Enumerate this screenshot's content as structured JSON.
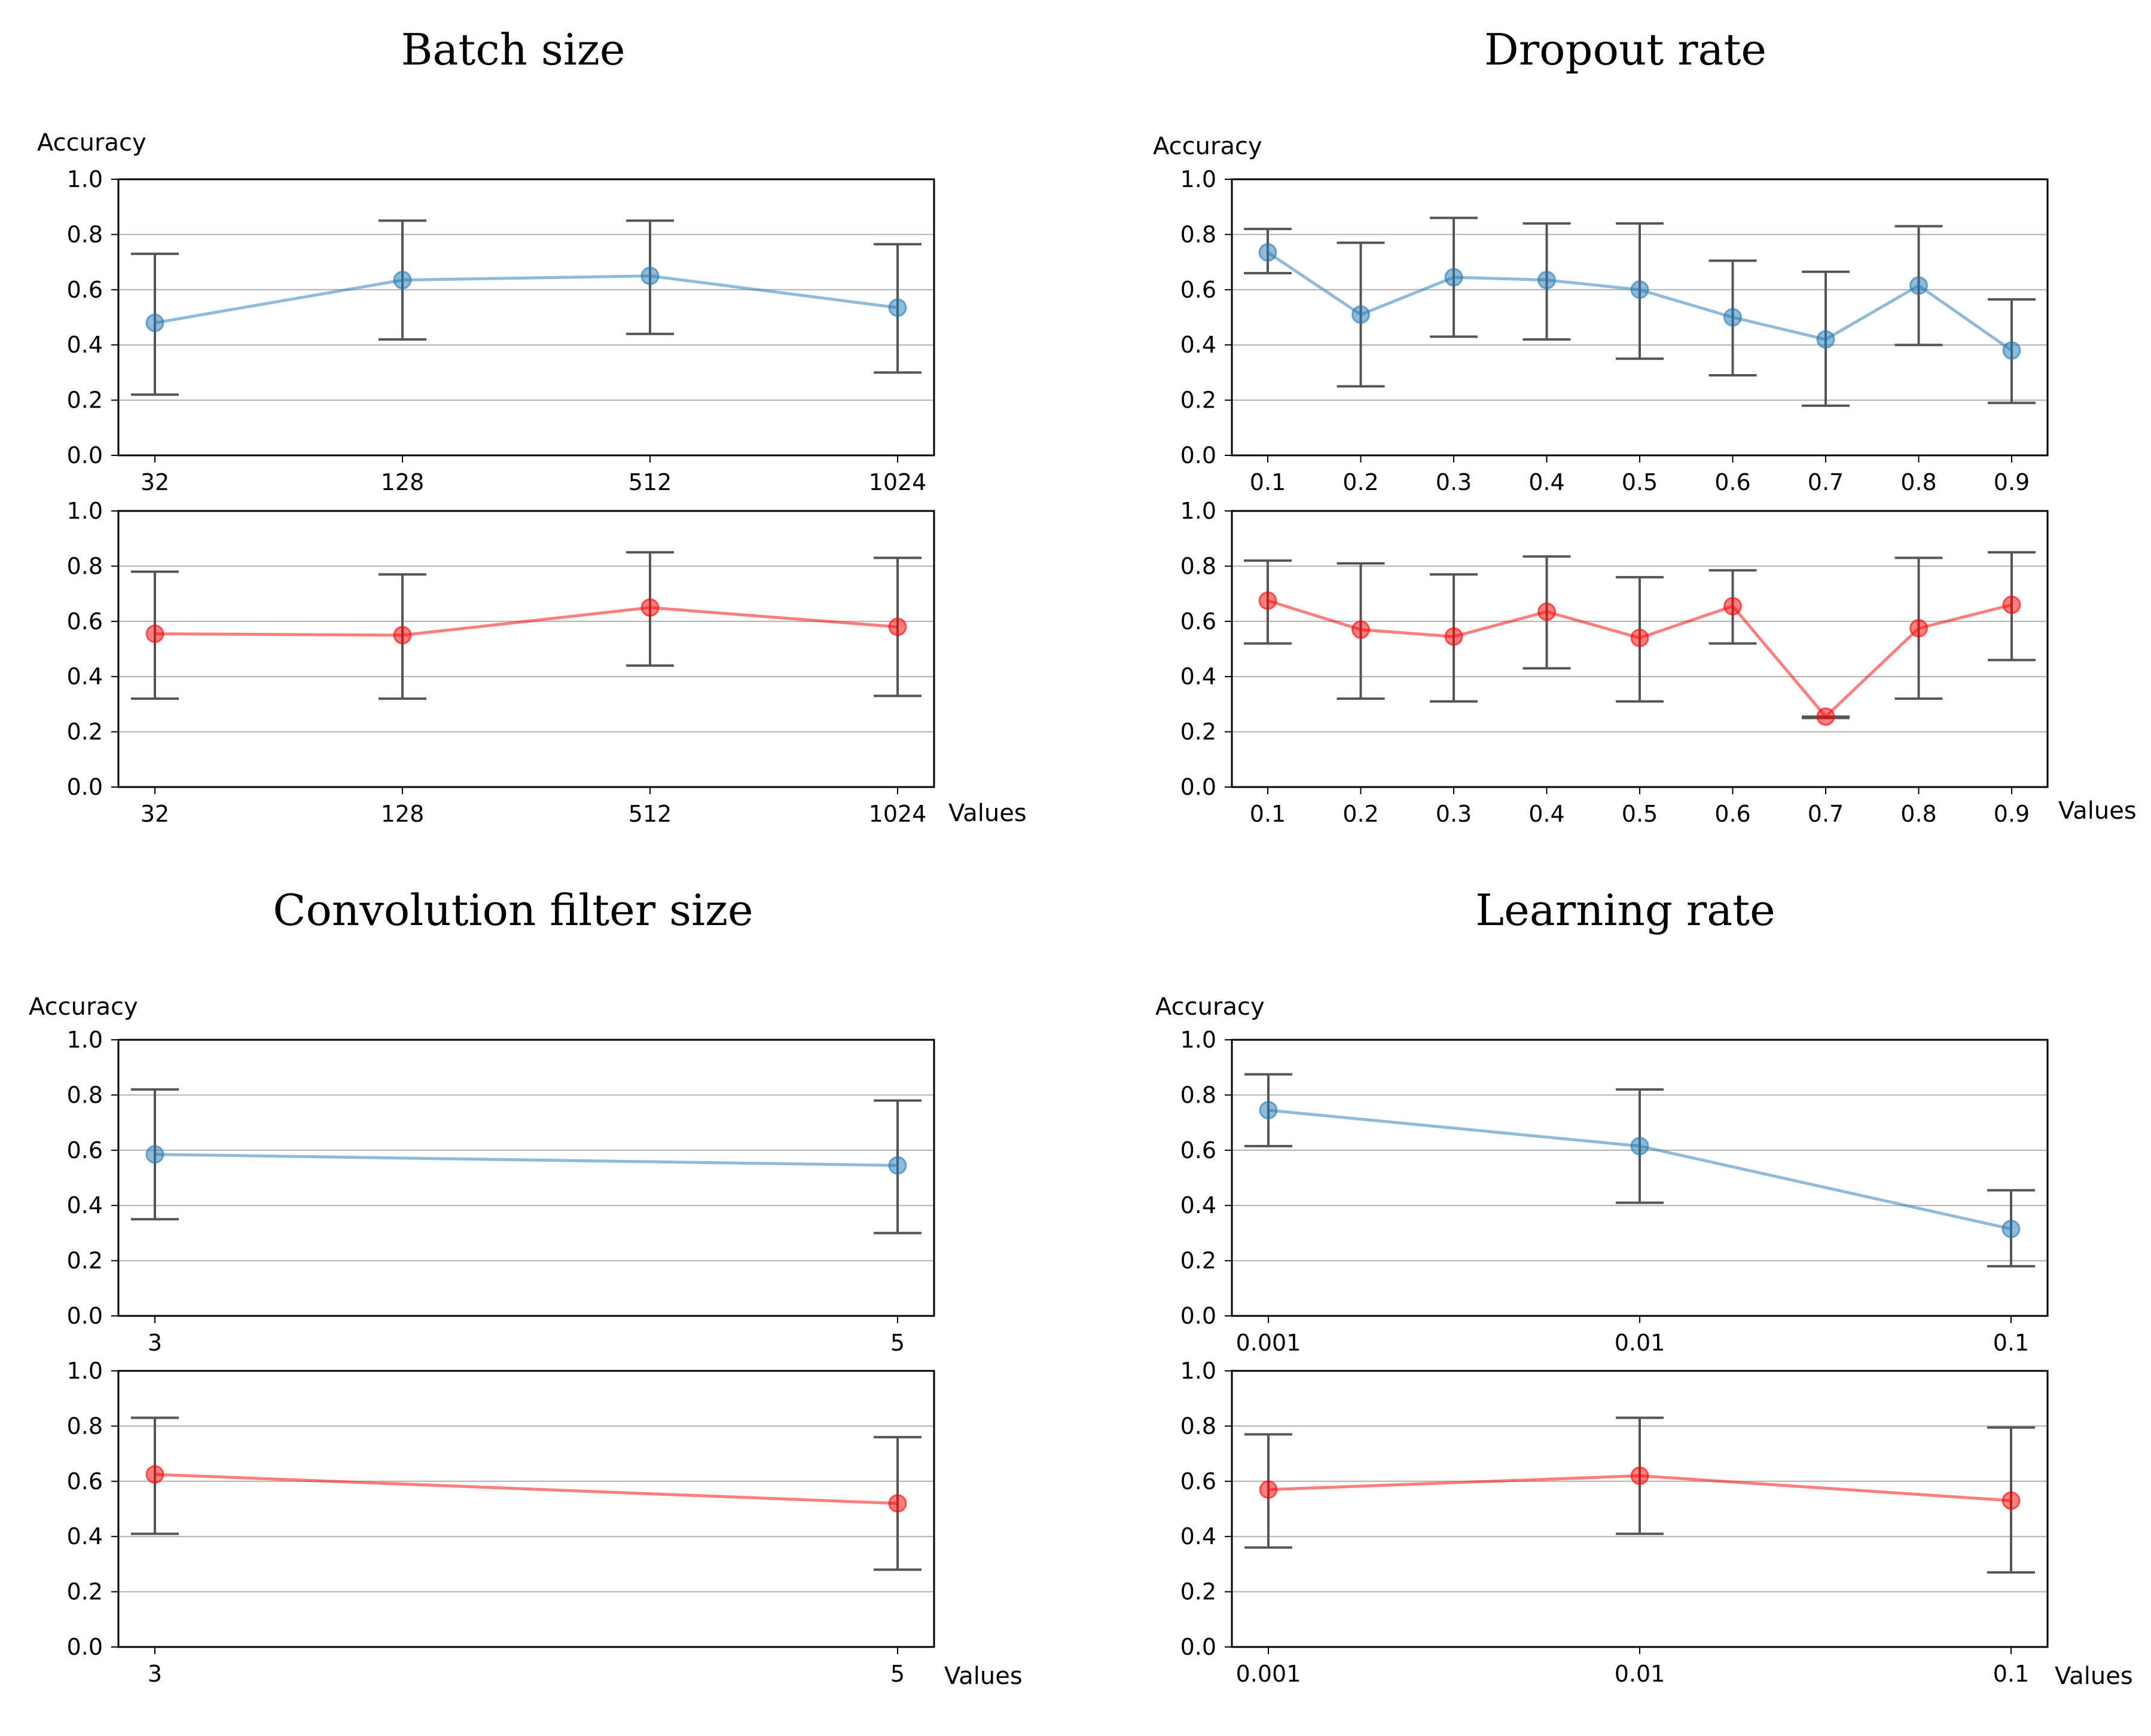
{
  "figure": {
    "ylabel": "Accuracy",
    "xlabel": "Values",
    "colors": {
      "blue": "#1f77b4",
      "red": "#ff0000",
      "grid": "#b0b0b0",
      "errorbar": "#555555"
    }
  },
  "chart_data": [
    {
      "id": "batch-size",
      "type": "line",
      "title": "Batch size",
      "ylabel": "Accuracy",
      "xlabel": "Values",
      "categories": [
        "32",
        "128",
        "512",
        "1024"
      ],
      "ylim": [
        0,
        1
      ],
      "yticks": [
        "0.0",
        "0.2",
        "0.4",
        "0.6",
        "0.8",
        "1.0"
      ],
      "grid": true,
      "series": [
        {
          "name": "blue",
          "color": "#1f77b4",
          "values": [
            0.48,
            0.635,
            0.65,
            0.535
          ],
          "err_low": [
            0.22,
            0.42,
            0.44,
            0.3
          ],
          "err_high": [
            0.73,
            0.85,
            0.85,
            0.765
          ]
        },
        {
          "name": "red",
          "color": "#ff0000",
          "values": [
            0.555,
            0.55,
            0.65,
            0.58
          ],
          "err_low": [
            0.32,
            0.32,
            0.44,
            0.33
          ],
          "err_high": [
            0.78,
            0.77,
            0.85,
            0.83
          ]
        }
      ]
    },
    {
      "id": "dropout-rate",
      "type": "line",
      "title": "Dropout rate",
      "ylabel": "Accuracy",
      "xlabel": "Values",
      "categories": [
        "0.1",
        "0.2",
        "0.3",
        "0.4",
        "0.5",
        "0.6",
        "0.7",
        "0.8",
        "0.9"
      ],
      "ylim": [
        0,
        1
      ],
      "yticks": [
        "0.0",
        "0.2",
        "0.4",
        "0.6",
        "0.8",
        "1.0"
      ],
      "grid": true,
      "series": [
        {
          "name": "blue",
          "color": "#1f77b4",
          "values": [
            0.735,
            0.51,
            0.645,
            0.635,
            0.6,
            0.5,
            0.42,
            0.615,
            0.38
          ],
          "err_low": [
            0.66,
            0.25,
            0.43,
            0.42,
            0.35,
            0.29,
            0.18,
            0.4,
            0.19
          ],
          "err_high": [
            0.82,
            0.77,
            0.86,
            0.84,
            0.84,
            0.705,
            0.665,
            0.83,
            0.565
          ]
        },
        {
          "name": "red",
          "color": "#ff0000",
          "values": [
            0.675,
            0.57,
            0.545,
            0.635,
            0.54,
            0.655,
            0.255,
            0.575,
            0.66
          ],
          "err_low": [
            0.52,
            0.32,
            0.31,
            0.43,
            0.31,
            0.52,
            0.25,
            0.32,
            0.46
          ],
          "err_high": [
            0.82,
            0.81,
            0.77,
            0.835,
            0.76,
            0.785,
            0.255,
            0.83,
            0.85
          ]
        }
      ]
    },
    {
      "id": "conv-filter-size",
      "type": "line",
      "title": "Convolution filter size",
      "ylabel": "Accuracy",
      "xlabel": "Values",
      "categories": [
        "3",
        "5"
      ],
      "ylim": [
        0,
        1
      ],
      "yticks": [
        "0.0",
        "0.2",
        "0.4",
        "0.6",
        "0.8",
        "1.0"
      ],
      "grid": true,
      "series": [
        {
          "name": "blue",
          "color": "#1f77b4",
          "values": [
            0.585,
            0.545
          ],
          "err_low": [
            0.35,
            0.3
          ],
          "err_high": [
            0.82,
            0.78
          ]
        },
        {
          "name": "red",
          "color": "#ff0000",
          "values": [
            0.625,
            0.52
          ],
          "err_low": [
            0.41,
            0.28
          ],
          "err_high": [
            0.83,
            0.76
          ]
        }
      ]
    },
    {
      "id": "learning-rate",
      "type": "line",
      "title": "Learning rate",
      "ylabel": "Accuracy",
      "xlabel": "Values",
      "categories": [
        "0.001",
        "0.01",
        "0.1"
      ],
      "ylim": [
        0,
        1
      ],
      "yticks": [
        "0.0",
        "0.2",
        "0.4",
        "0.6",
        "0.8",
        "1.0"
      ],
      "grid": true,
      "series": [
        {
          "name": "blue",
          "color": "#1f77b4",
          "values": [
            0.745,
            0.615,
            0.315
          ],
          "err_low": [
            0.615,
            0.41,
            0.18
          ],
          "err_high": [
            0.875,
            0.82,
            0.455
          ]
        },
        {
          "name": "red",
          "color": "#ff0000",
          "values": [
            0.57,
            0.62,
            0.53
          ],
          "err_low": [
            0.36,
            0.41,
            0.27
          ],
          "err_high": [
            0.77,
            0.83,
            0.795
          ]
        }
      ]
    }
  ]
}
